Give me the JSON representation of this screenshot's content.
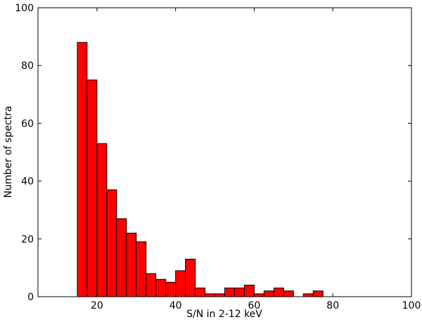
{
  "chart_data": {
    "type": "bar",
    "title": "",
    "xlabel": "S/N in 2-12 keV",
    "ylabel": "Number of spectra",
    "xlim": [
      5,
      100
    ],
    "ylim": [
      0,
      100
    ],
    "xticks": [
      20,
      40,
      60,
      80,
      100
    ],
    "yticks": [
      0,
      20,
      40,
      60,
      80,
      100
    ],
    "grid": false,
    "bar_color": "#ff0000",
    "edge_color": "#000000",
    "bin_width": 2.5,
    "bins": [
      {
        "x": 15.0,
        "value": 88
      },
      {
        "x": 17.5,
        "value": 75
      },
      {
        "x": 20.0,
        "value": 53
      },
      {
        "x": 22.5,
        "value": 37
      },
      {
        "x": 25.0,
        "value": 27
      },
      {
        "x": 27.5,
        "value": 22
      },
      {
        "x": 30.0,
        "value": 19
      },
      {
        "x": 32.5,
        "value": 8
      },
      {
        "x": 35.0,
        "value": 6
      },
      {
        "x": 37.5,
        "value": 5
      },
      {
        "x": 40.0,
        "value": 9
      },
      {
        "x": 42.5,
        "value": 13
      },
      {
        "x": 45.0,
        "value": 3
      },
      {
        "x": 47.5,
        "value": 1
      },
      {
        "x": 50.0,
        "value": 1
      },
      {
        "x": 52.5,
        "value": 3
      },
      {
        "x": 55.0,
        "value": 3
      },
      {
        "x": 57.5,
        "value": 4
      },
      {
        "x": 60.0,
        "value": 1
      },
      {
        "x": 62.5,
        "value": 2
      },
      {
        "x": 65.0,
        "value": 3
      },
      {
        "x": 67.5,
        "value": 2
      },
      {
        "x": 70.0,
        "value": 0
      },
      {
        "x": 72.5,
        "value": 1
      },
      {
        "x": 75.0,
        "value": 2
      }
    ]
  }
}
